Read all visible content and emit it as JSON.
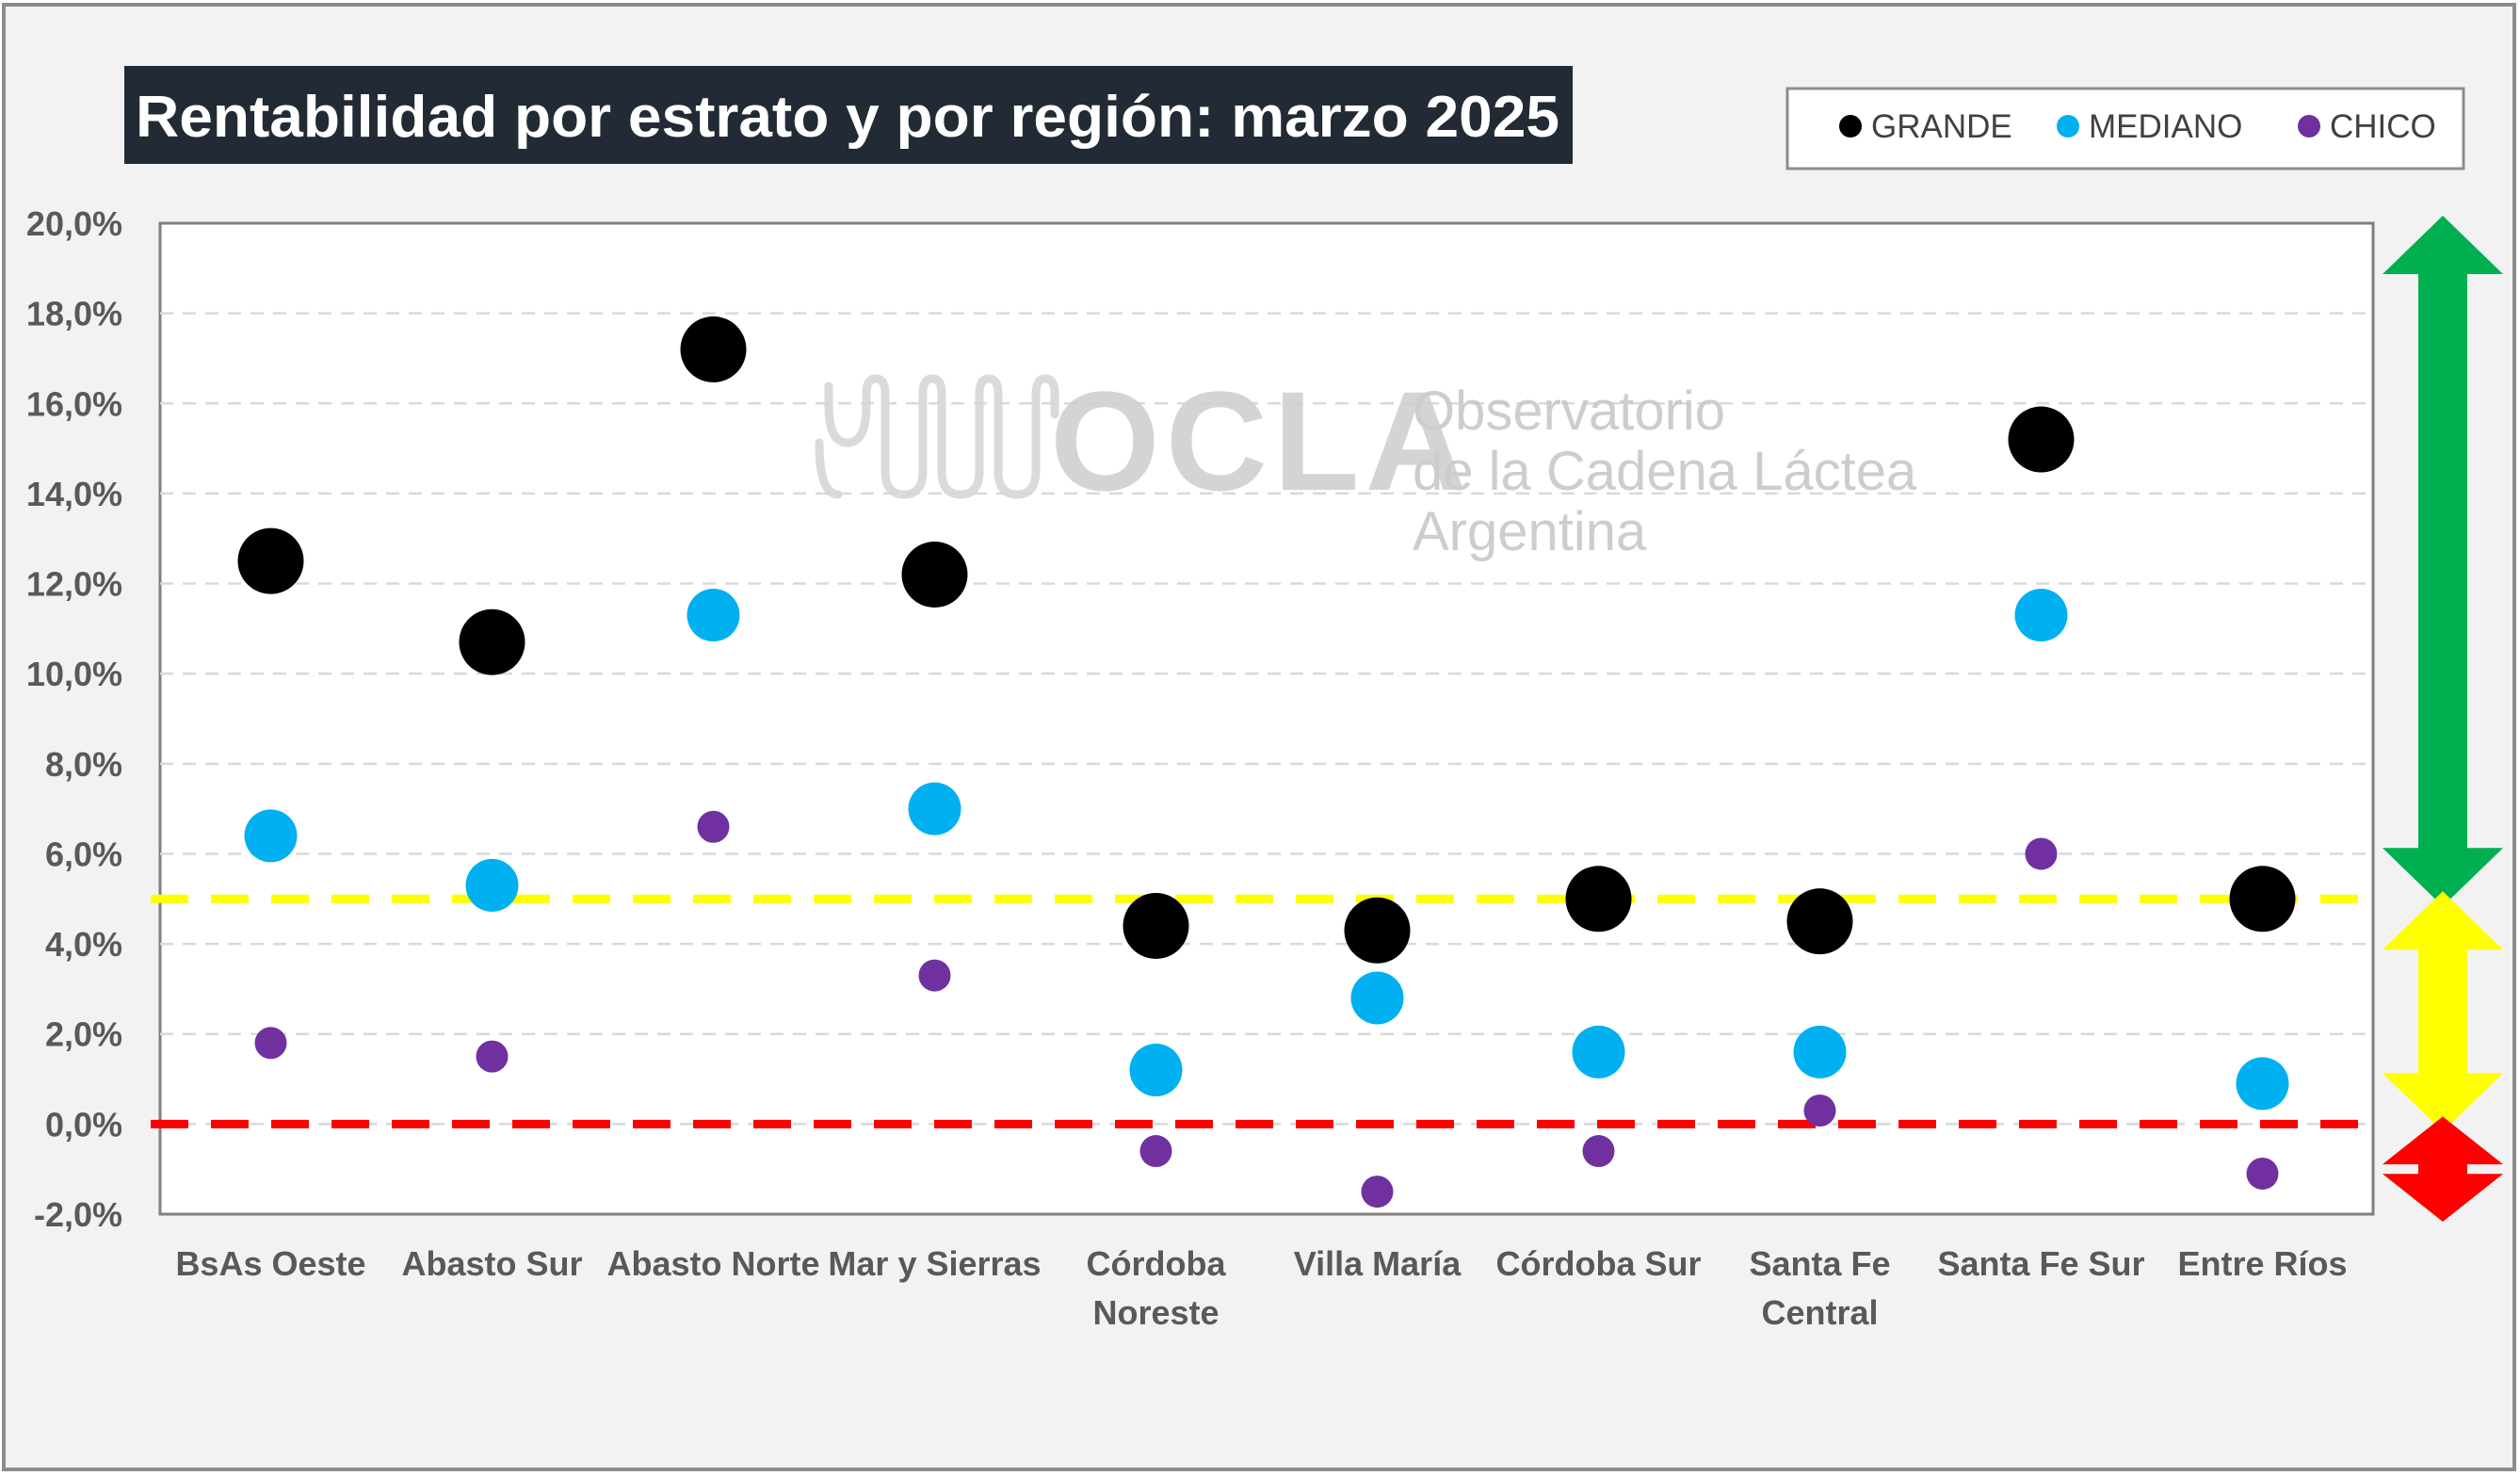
{
  "chart_data": {
    "type": "scatter",
    "title": "Rentabilidad por estrato y por región: marzo 2025",
    "categories": [
      [
        "BsAs Oeste"
      ],
      [
        "Abasto Sur"
      ],
      [
        "Abasto Norte"
      ],
      [
        "Mar y Sierras"
      ],
      [
        "Córdoba",
        "Noreste"
      ],
      [
        "Villa María"
      ],
      [
        "Córdoba Sur"
      ],
      [
        "Santa Fe",
        "Central"
      ],
      [
        "Santa Fe Sur"
      ],
      [
        "Entre Ríos"
      ]
    ],
    "series": [
      {
        "name": "GRANDE",
        "color": "#000000",
        "values": [
          12.5,
          10.7,
          17.2,
          12.2,
          4.4,
          4.3,
          5.0,
          4.5,
          15.2,
          5.0
        ]
      },
      {
        "name": "MEDIANO",
        "color": "#00B0F0",
        "values": [
          6.4,
          5.3,
          11.3,
          7.0,
          1.2,
          2.8,
          1.6,
          1.6,
          11.3,
          0.9
        ]
      },
      {
        "name": "CHICO",
        "color": "#7030A0",
        "values": [
          1.8,
          1.5,
          6.6,
          3.3,
          -0.6,
          -1.5,
          -0.6,
          0.3,
          6.0,
          -1.1
        ]
      }
    ],
    "y_ticks": [
      "20,0%",
      "18,0%",
      "16,0%",
      "14,0%",
      "12,0%",
      "10,0%",
      "8,0%",
      "6,0%",
      "4,0%",
      "2,0%",
      "0,0%",
      "-2,0%"
    ],
    "ylim": [
      -2,
      20
    ],
    "grid": true,
    "legend_position": "top-right",
    "reference_lines": [
      {
        "value": 5.0,
        "color": "#FFFF00",
        "style": "dashed"
      },
      {
        "value": 0.0,
        "color": "#FF0000",
        "style": "dashed"
      }
    ],
    "side_arrows": [
      {
        "color": "#00B050",
        "from": 5.0,
        "to": 20.0
      },
      {
        "color": "#FFFF00",
        "from": 0.0,
        "to": 5.0
      },
      {
        "color": "#FF0000",
        "from": -2.0,
        "to": 0.0
      }
    ]
  },
  "watermark": {
    "logo": "OCLA",
    "lines": [
      "Observatorio",
      "de la Cadena Láctea",
      "Argentina"
    ]
  }
}
